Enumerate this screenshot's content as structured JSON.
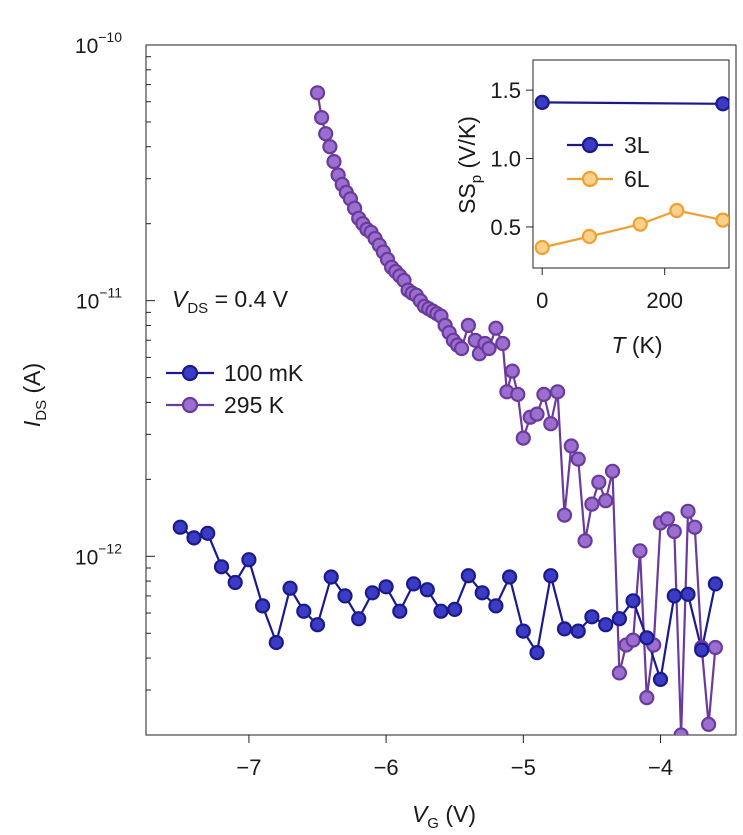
{
  "chart_data": [
    {
      "type": "scatter",
      "title": "",
      "xlabel": {
        "main": "V",
        "sub": "G",
        "unit": " (V)"
      },
      "ylabel": {
        "main": "I",
        "sub": "DS",
        "unit": " (A)"
      },
      "yscale": "log",
      "xlim": [
        -7.75,
        -3.45
      ],
      "ylim": [
        2e-13,
        1e-10
      ],
      "x_ticks": [
        -7,
        -6,
        -5,
        -4
      ],
      "x_tick_labels": [
        "−7",
        "−6",
        "−5",
        "−4"
      ],
      "y_major_ticks": [
        {
          "value": 1e-10,
          "base": "10",
          "exp": "−10"
        },
        {
          "value": 1e-11,
          "base": "10",
          "exp": "−11"
        },
        {
          "value": 1e-12,
          "base": "10",
          "exp": "−12"
        }
      ],
      "annotation": {
        "main": "V",
        "sub": "DS",
        "text": " = 0.4 V"
      },
      "legend_position": "center-left",
      "series": [
        {
          "name": "100 mK",
          "color": "#1a1a8c",
          "fill": "#3b3bc4",
          "x": [
            -7.5,
            -7.4,
            -7.3,
            -7.2,
            -7.1,
            -7.0,
            -6.9,
            -6.8,
            -6.7,
            -6.6,
            -6.5,
            -6.4,
            -6.3,
            -6.2,
            -6.1,
            -6.0,
            -5.9,
            -5.8,
            -5.7,
            -5.6,
            -5.5,
            -5.4,
            -5.3,
            -5.2,
            -5.1,
            -5.0,
            -4.9,
            -4.8,
            -4.7,
            -4.6,
            -4.5,
            -4.4,
            -4.3,
            -4.2,
            -4.1,
            -4.0,
            -3.9,
            -3.8,
            -3.7,
            -3.6
          ],
          "y": [
            1.3e-12,
            1.18e-12,
            1.23e-12,
            9.1e-13,
            7.9e-13,
            9.7e-13,
            6.4e-13,
            4.6e-13,
            7.5e-13,
            6.1e-13,
            5.4e-13,
            8.3e-13,
            7e-13,
            5.7e-13,
            7.2e-13,
            7.6e-13,
            6.1e-13,
            7.8e-13,
            7.4e-13,
            6.1e-13,
            6.2e-13,
            8.4e-13,
            7.2e-13,
            6.4e-13,
            8.3e-13,
            5.1e-13,
            4.2e-13,
            8.4e-13,
            5.2e-13,
            5.1e-13,
            5.8e-13,
            5.4e-13,
            5.7e-13,
            6.7e-13,
            4.8e-13,
            3.3e-13,
            7e-13,
            7.1e-13,
            4.3e-13,
            7.8e-13
          ]
        },
        {
          "name": "295 K",
          "color": "#6a3a9c",
          "fill": "#9a6fd0",
          "x": [
            -6.5,
            -6.47,
            -6.44,
            -6.41,
            -6.38,
            -6.35,
            -6.32,
            -6.29,
            -6.26,
            -6.23,
            -6.2,
            -6.17,
            -6.14,
            -6.11,
            -6.08,
            -6.05,
            -6.02,
            -5.99,
            -5.96,
            -5.93,
            -5.9,
            -5.87,
            -5.84,
            -5.81,
            -5.78,
            -5.75,
            -5.72,
            -5.69,
            -5.66,
            -5.63,
            -5.6,
            -5.57,
            -5.54,
            -5.51,
            -5.48,
            -5.45,
            -5.4,
            -5.35,
            -5.32,
            -5.28,
            -5.25,
            -5.2,
            -5.15,
            -5.12,
            -5.08,
            -5.04,
            -5.0,
            -4.95,
            -4.9,
            -4.85,
            -4.8,
            -4.75,
            -4.7,
            -4.65,
            -4.6,
            -4.55,
            -4.5,
            -4.45,
            -4.4,
            -4.35,
            -4.3,
            -4.25,
            -4.2,
            -4.15,
            -4.1,
            -4.05,
            -4.0,
            -3.95,
            -3.9,
            -3.85,
            -3.8,
            -3.75,
            -3.7,
            -3.65,
            -3.6
          ],
          "y": [
            6.5e-11,
            5.2e-11,
            4.5e-11,
            4e-11,
            3.5e-11,
            3.1e-11,
            2.85e-11,
            2.65e-11,
            2.5e-11,
            2.3e-11,
            2.1e-11,
            2e-11,
            1.9e-11,
            1.85e-11,
            1.75e-11,
            1.65e-11,
            1.55e-11,
            1.45e-11,
            1.35e-11,
            1.3e-11,
            1.25e-11,
            1.2e-11,
            1.1e-11,
            1.07e-11,
            1.05e-11,
            1e-11,
            9.5e-12,
            9.3e-12,
            9.1e-12,
            8.9e-12,
            8.7e-12,
            8e-12,
            7.5e-12,
            7e-12,
            6.7e-12,
            6.5e-12,
            8e-12,
            7e-12,
            6.2e-12,
            6.8e-12,
            6.5e-12,
            7.8e-12,
            6.8e-12,
            4.4e-12,
            5.3e-12,
            4.3e-12,
            2.9e-12,
            3.5e-12,
            3.6e-12,
            4.3e-12,
            3.3e-12,
            4.4e-12,
            1.45e-12,
            2.7e-12,
            2.4e-12,
            1.15e-12,
            1.6e-12,
            1.95e-12,
            1.65e-12,
            2.15e-12,
            3.5e-13,
            4.5e-13,
            4.7e-13,
            1.05e-12,
            2.8e-13,
            4.5e-13,
            1.35e-12,
            1.4e-12,
            1.25e-12,
            2e-13,
            1.5e-12,
            1.3e-12,
            4.4e-13,
            2.2e-13,
            4.4e-13
          ]
        }
      ]
    },
    {
      "type": "line",
      "title": "",
      "inset": true,
      "xlabel": {
        "main": "T",
        "unit": " (K)"
      },
      "ylabel": {
        "main": "SS",
        "sub": "p",
        "unit": " (V/K)"
      },
      "xlim": [
        -15,
        305
      ],
      "ylim": [
        0.2,
        1.72
      ],
      "x_ticks": [
        0,
        200
      ],
      "x_tick_labels": [
        "0",
        "200"
      ],
      "y_ticks": [
        0.5,
        1.0,
        1.5
      ],
      "y_tick_labels": [
        "0.5",
        "1.0",
        "1.5"
      ],
      "legend_position": "center",
      "series": [
        {
          "name": "3L",
          "color": "#1a1a8c",
          "fill": "#3b3bc4",
          "x": [
            0,
            295
          ],
          "y": [
            1.41,
            1.4
          ]
        },
        {
          "name": "6L",
          "color": "#f0a030",
          "fill": "#fbd08a",
          "x": [
            0,
            77,
            160,
            220,
            295
          ],
          "y": [
            0.35,
            0.43,
            0.52,
            0.62,
            0.55
          ]
        }
      ]
    }
  ]
}
